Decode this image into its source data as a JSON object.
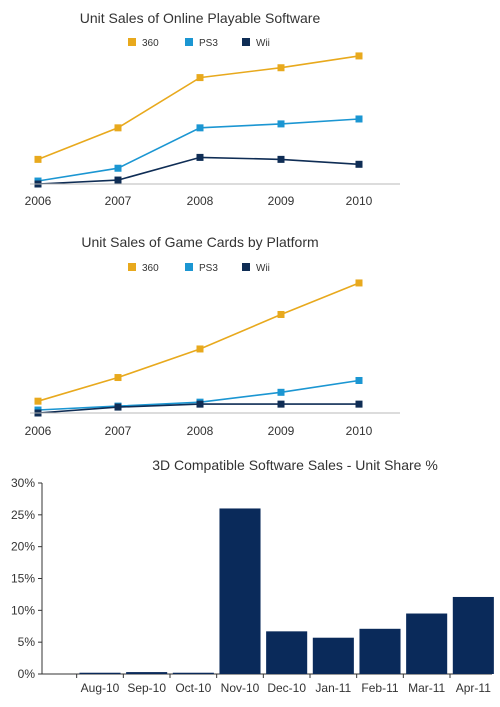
{
  "chart_data": [
    {
      "type": "line",
      "title": "Unit Sales of Online Playable Software",
      "categories": [
        "2006",
        "2007",
        "2008",
        "2009",
        "2010"
      ],
      "series": [
        {
          "name": "360",
          "color": "#e8a91d",
          "values": [
            25,
            57,
            108,
            118,
            130
          ]
        },
        {
          "name": "PS3",
          "color": "#1b96d2",
          "values": [
            3,
            16,
            57,
            61,
            66
          ]
        },
        {
          "name": "Wii",
          "color": "#0f2d55",
          "values": [
            0,
            4,
            27,
            25,
            20
          ]
        }
      ],
      "ylim": [
        0,
        135
      ],
      "grid": false,
      "legend": "top"
    },
    {
      "type": "line",
      "title": "Unit Sales of Game Cards by Platform",
      "categories": [
        "2006",
        "2007",
        "2008",
        "2009",
        "2010"
      ],
      "series": [
        {
          "name": "360",
          "color": "#e8a91d",
          "values": [
            12,
            36,
            65,
            100,
            132
          ]
        },
        {
          "name": "PS3",
          "color": "#1b96d2",
          "values": [
            3,
            7,
            11,
            21,
            33
          ]
        },
        {
          "name": "Wii",
          "color": "#0f2d55",
          "values": [
            0,
            6,
            9,
            9,
            9
          ]
        }
      ],
      "ylim": [
        0,
        135
      ],
      "grid": false,
      "legend": "top"
    },
    {
      "type": "bar",
      "title": "3D Compatible Software Sales - Unit Share %",
      "categories": [
        "Aug-10",
        "Sep-10",
        "Oct-10",
        "Nov-10",
        "Dec-10",
        "Jan-11",
        "Feb-11",
        "Mar-11",
        "Apr-11"
      ],
      "values": [
        0.2,
        0.3,
        0.2,
        26.0,
        6.7,
        5.7,
        7.1,
        9.5,
        12.1
      ],
      "color": "#0a2a5a",
      "ylim": [
        0,
        30
      ],
      "yticks": [
        "0%",
        "5%",
        "10%",
        "15%",
        "20%",
        "25%",
        "30%"
      ],
      "grid": false
    }
  ]
}
